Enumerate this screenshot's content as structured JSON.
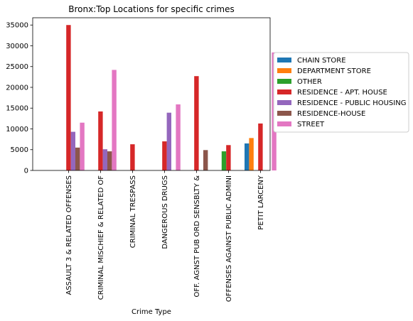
{
  "chart_data": {
    "type": "bar",
    "title": "Bronx:Top Locations for specific crimes",
    "xlabel": "Crime Type",
    "ylabel": "",
    "ylim": [
      0,
      36750
    ],
    "yticks": [
      0,
      5000,
      10000,
      15000,
      20000,
      25000,
      30000,
      35000
    ],
    "ytick_labels": [
      "0",
      "5000",
      "10000",
      "15000",
      "20000",
      "25000",
      "30000",
      "35000"
    ],
    "grid": false,
    "legend_position": "right-outside",
    "categories": [
      "ASSAULT 3 & RELATED OFFENSES",
      "CRIMINAL MISCHIEF & RELATED OF",
      "CRIMINAL TRESPASS",
      "DANGEROUS DRUGS",
      "OFF. AGNST PUB ORD SENSBLTY &",
      "OFFENSES AGAINST PUBLIC ADMINI",
      "PETIT LARCENY"
    ],
    "series": [
      {
        "name": "CHAIN STORE",
        "color": "#1f77b4",
        "values": [
          null,
          null,
          null,
          null,
          null,
          null,
          6500
        ]
      },
      {
        "name": "DEPARTMENT STORE",
        "color": "#ff7f0e",
        "values": [
          null,
          null,
          null,
          null,
          null,
          null,
          7800
        ]
      },
      {
        "name": "OTHER",
        "color": "#2ca02c",
        "values": [
          null,
          null,
          null,
          null,
          null,
          4600,
          null
        ]
      },
      {
        "name": "RESIDENCE - APT. HOUSE",
        "color": "#d62728",
        "values": [
          35000,
          14200,
          6300,
          7000,
          22700,
          6100,
          11300
        ]
      },
      {
        "name": "RESIDENCE - PUBLIC HOUSING",
        "color": "#9467bd",
        "values": [
          9300,
          5100,
          null,
          13900,
          null,
          null,
          null
        ]
      },
      {
        "name": "RESIDENCE-HOUSE",
        "color": "#8c564b",
        "values": [
          5500,
          4600,
          null,
          null,
          4900,
          null,
          null
        ]
      },
      {
        "name": "STREET",
        "color": "#e377c2",
        "values": [
          11500,
          24200,
          null,
          15900,
          null,
          null,
          28400
        ]
      }
    ]
  }
}
